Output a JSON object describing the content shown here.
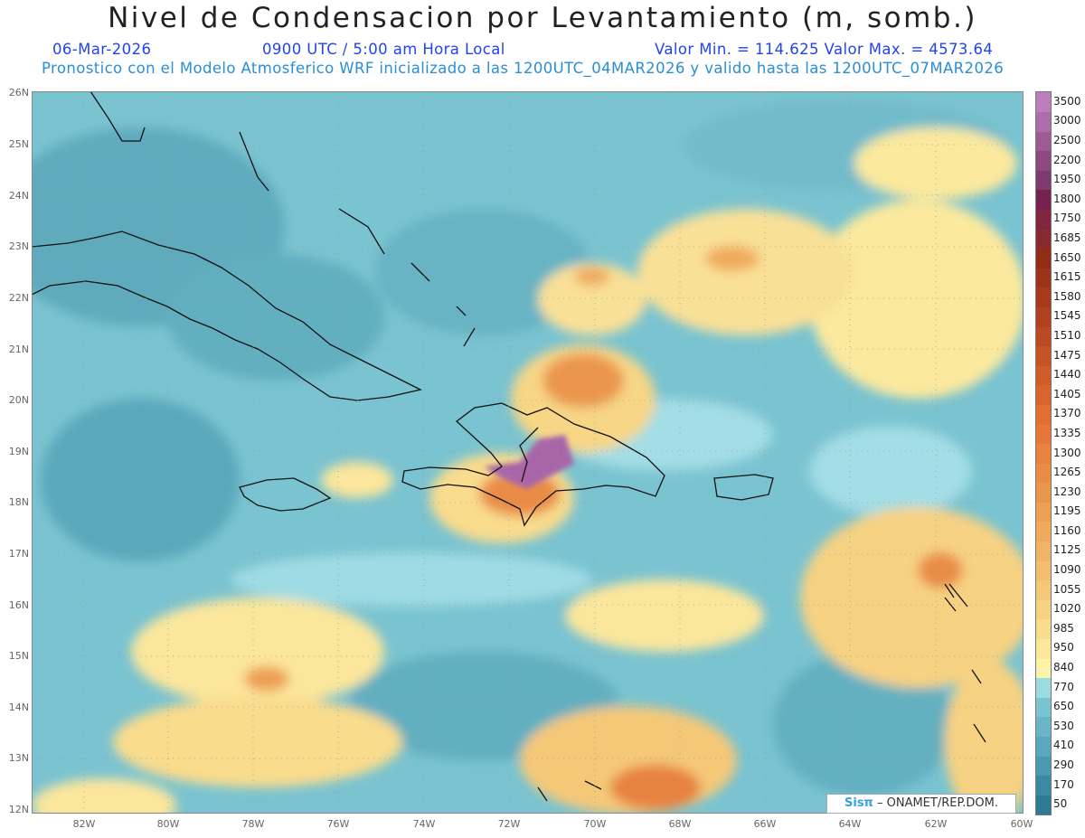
{
  "header": {
    "title": "Nivel de Condensacion por Levantamiento (m, somb.)",
    "date": "06-Mar-2026",
    "time": "0900 UTC / 5:00 am Hora Local",
    "minmax": "Valor Min. = 114.625  Valor Max. = 4573.64",
    "forecast": "Pronostico con el Modelo Atmosferico WRF inicializado a las 1200UTC_04MAR2026 y valido hasta las  1200UTC_07MAR2026"
  },
  "axes": {
    "lat_labels": [
      "26N",
      "25N",
      "24N",
      "23N",
      "22N",
      "21N",
      "20N",
      "19N",
      "18N",
      "17N",
      "16N",
      "15N",
      "14N",
      "13N",
      "12N"
    ],
    "lon_labels": [
      "82W",
      "80W",
      "78W",
      "76W",
      "74W",
      "72W",
      "70W",
      "68W",
      "66W",
      "64W",
      "62W",
      "60W"
    ]
  },
  "legend": {
    "levels": [
      "50",
      "170",
      "290",
      "410",
      "530",
      "650",
      "770",
      "840",
      "950",
      "985",
      "1020",
      "1055",
      "1090",
      "1125",
      "1160",
      "1195",
      "1230",
      "1265",
      "1300",
      "1335",
      "1370",
      "1405",
      "1440",
      "1475",
      "1510",
      "1545",
      "1580",
      "1615",
      "1650",
      "1685",
      "1750",
      "1800",
      "1950",
      "2200",
      "2500",
      "3000",
      "3500"
    ],
    "colors": [
      "#2e7b94",
      "#3c8aa2",
      "#4a99b0",
      "#5aa8bd",
      "#6ab6c8",
      "#7cc3d2",
      "#9ddbe3",
      "#fdf3a8",
      "#fbe699",
      "#f9dc8c",
      "#f7d282",
      "#f5c878",
      "#f3be6e",
      "#f1b465",
      "#efaa5c",
      "#eda054",
      "#eb964d",
      "#e98c46",
      "#e7823f",
      "#e57838",
      "#e36e32",
      "#d9652d",
      "#cf5c29",
      "#c55325",
      "#bb4a22",
      "#b1421f",
      "#a73a1c",
      "#9d3319",
      "#932c17",
      "#8a2a30",
      "#802640",
      "#76224e",
      "#7d3a6e",
      "#8d4a82",
      "#9d5b96",
      "#ad6caa",
      "#bd7dbe"
    ]
  },
  "credit": {
    "sis": "Sisπ",
    "text": " – ONAMET/REP.DOM."
  }
}
